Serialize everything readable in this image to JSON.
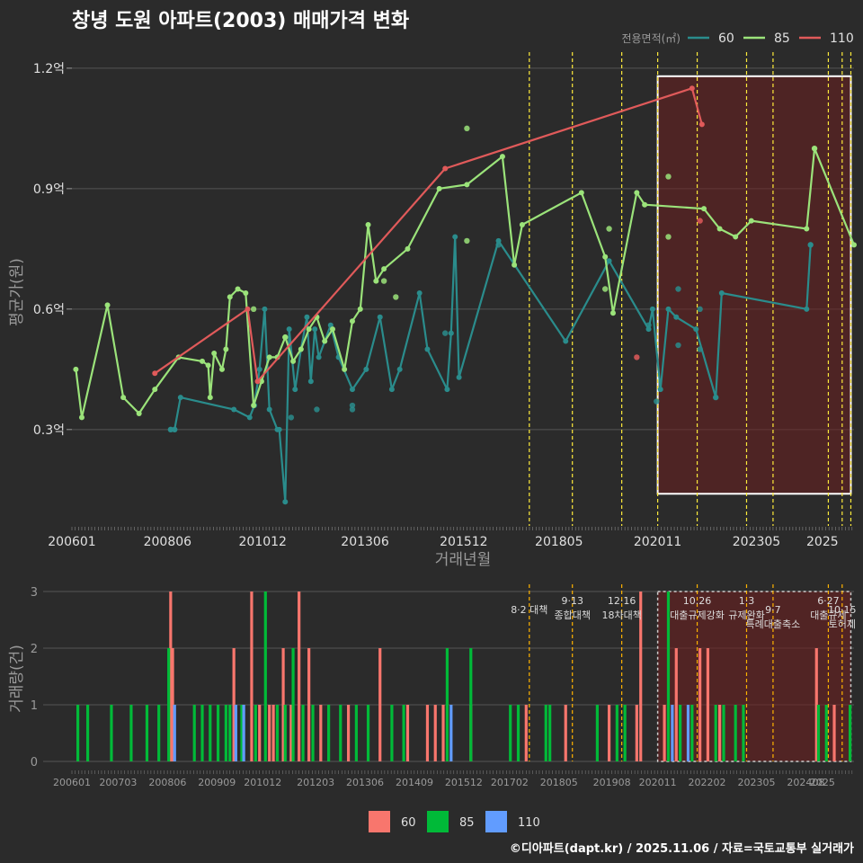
{
  "colors": {
    "bg": "#2b2b2b",
    "grid": "#555555",
    "text": "#e0e0e0",
    "muted": "#9a9a9a",
    "s60": "#2a8c8c",
    "s85": "#9be37a",
    "s110": "#e05a5a",
    "bar60": "#f8766d",
    "bar85": "#00ba38",
    "bar110": "#619cff",
    "policy": "#ffeb3b",
    "policy_bottom": "#ffb300",
    "highlight": "#6b1f1f"
  },
  "chart_data": [
    {
      "type": "line",
      "title": "창녕 도원 아파트(2003) 매매가격 변화",
      "xlabel": "거래년월",
      "ylabel": "평균가(원)",
      "legend_title": "전용면적(㎡)",
      "ylim": [
        0.06,
        1.24
      ],
      "xlim": [
        2006.0,
        2025.8
      ],
      "y_ticks": [
        {
          "v": 0.3,
          "label": "0.3억"
        },
        {
          "v": 0.6,
          "label": "0.6억"
        },
        {
          "v": 0.9,
          "label": "0.9억"
        },
        {
          "v": 1.2,
          "label": "1.2억"
        }
      ],
      "x_ticks": [
        {
          "v": 2006.0,
          "label": "200601"
        },
        {
          "v": 2008.42,
          "label": "200806"
        },
        {
          "v": 2010.83,
          "label": "201012"
        },
        {
          "v": 2013.42,
          "label": "201306"
        },
        {
          "v": 2015.92,
          "label": "201512"
        },
        {
          "v": 2018.33,
          "label": "201805"
        },
        {
          "v": 2020.83,
          "label": "202011"
        },
        {
          "v": 2023.33,
          "label": "202305"
        },
        {
          "v": 2025.0,
          "label": "2025"
        }
      ],
      "policy_lines": [
        2017.58,
        2018.67,
        2019.92,
        2020.83,
        2021.83,
        2023.08,
        2023.75,
        2025.15,
        2025.5,
        2025.72
      ],
      "highlight_range": [
        2020.83,
        2025.72
      ],
      "series": [
        {
          "name": "60",
          "line": [
            [
              2008.5,
              0.3
            ],
            [
              2008.6,
              0.3
            ],
            [
              2008.75,
              0.38
            ],
            [
              2010.1,
              0.35
            ],
            [
              2010.5,
              0.33
            ],
            [
              2010.62,
              0.36
            ],
            [
              2010.75,
              0.45
            ],
            [
              2010.88,
              0.6
            ],
            [
              2011.0,
              0.35
            ],
            [
              2011.2,
              0.3
            ],
            [
              2011.25,
              0.3
            ],
            [
              2011.4,
              0.12
            ],
            [
              2011.5,
              0.55
            ],
            [
              2011.65,
              0.4
            ],
            [
              2011.8,
              0.5
            ],
            [
              2011.95,
              0.58
            ],
            [
              2012.05,
              0.42
            ],
            [
              2012.15,
              0.55
            ],
            [
              2012.25,
              0.48
            ],
            [
              2012.4,
              0.52
            ],
            [
              2012.55,
              0.56
            ],
            [
              2012.75,
              0.48
            ],
            [
              2013.1,
              0.4
            ],
            [
              2013.45,
              0.45
            ],
            [
              2013.8,
              0.58
            ],
            [
              2014.1,
              0.4
            ],
            [
              2014.3,
              0.45
            ],
            [
              2014.8,
              0.64
            ],
            [
              2015.0,
              0.5
            ],
            [
              2015.5,
              0.4
            ],
            [
              2015.6,
              0.54
            ],
            [
              2015.7,
              0.78
            ],
            [
              2015.8,
              0.43
            ],
            [
              2016.8,
              0.77
            ],
            [
              2018.5,
              0.52
            ],
            [
              2019.6,
              0.72
            ],
            [
              2020.6,
              0.55
            ],
            [
              2020.7,
              0.6
            ],
            [
              2020.9,
              0.4
            ],
            [
              2021.1,
              0.6
            ],
            [
              2021.3,
              0.58
            ],
            [
              2021.8,
              0.55
            ],
            [
              2022.3,
              0.38
            ],
            [
              2022.45,
              0.64
            ],
            [
              2024.6,
              0.6
            ],
            [
              2024.7,
              0.76
            ]
          ],
          "points": [
            [
              2008.5,
              0.3
            ],
            [
              2008.6,
              0.3
            ],
            [
              2011.55,
              0.33
            ],
            [
              2012.2,
              0.35
            ],
            [
              2013.1,
              0.35
            ],
            [
              2013.1,
              0.36
            ],
            [
              2015.45,
              0.54
            ],
            [
              2016.8,
              0.76
            ],
            [
              2020.6,
              0.56
            ],
            [
              2020.8,
              0.37
            ],
            [
              2021.35,
              0.65
            ],
            [
              2021.35,
              0.51
            ],
            [
              2021.9,
              0.6
            ],
            [
              2021.9,
              0.5
            ],
            [
              2022.3,
              0.38
            ],
            [
              2024.7,
              0.76
            ]
          ]
        },
        {
          "name": "85",
          "line": [
            [
              2006.1,
              0.45
            ],
            [
              2006.25,
              0.33
            ],
            [
              2006.9,
              0.61
            ],
            [
              2007.3,
              0.38
            ],
            [
              2007.7,
              0.34
            ],
            [
              2008.1,
              0.4
            ],
            [
              2008.7,
              0.48
            ],
            [
              2009.3,
              0.47
            ],
            [
              2009.45,
              0.46
            ],
            [
              2009.5,
              0.38
            ],
            [
              2009.6,
              0.49
            ],
            [
              2009.8,
              0.45
            ],
            [
              2009.9,
              0.5
            ],
            [
              2010.0,
              0.63
            ],
            [
              2010.2,
              0.65
            ],
            [
              2010.4,
              0.64
            ],
            [
              2010.6,
              0.36
            ],
            [
              2010.8,
              0.42
            ],
            [
              2011.0,
              0.48
            ],
            [
              2011.2,
              0.48
            ],
            [
              2011.4,
              0.53
            ],
            [
              2011.6,
              0.47
            ],
            [
              2011.8,
              0.5
            ],
            [
              2012.0,
              0.55
            ],
            [
              2012.2,
              0.58
            ],
            [
              2012.4,
              0.52
            ],
            [
              2012.6,
              0.55
            ],
            [
              2012.9,
              0.45
            ],
            [
              2013.1,
              0.57
            ],
            [
              2013.3,
              0.6
            ],
            [
              2013.5,
              0.81
            ],
            [
              2013.7,
              0.67
            ],
            [
              2013.9,
              0.7
            ],
            [
              2014.5,
              0.75
            ],
            [
              2015.3,
              0.9
            ],
            [
              2016.0,
              0.91
            ],
            [
              2016.9,
              0.98
            ],
            [
              2017.2,
              0.71
            ],
            [
              2017.4,
              0.81
            ],
            [
              2018.9,
              0.89
            ],
            [
              2019.5,
              0.73
            ],
            [
              2019.7,
              0.59
            ],
            [
              2020.3,
              0.89
            ],
            [
              2020.5,
              0.86
            ],
            [
              2022.0,
              0.85
            ],
            [
              2022.4,
              0.8
            ],
            [
              2022.8,
              0.78
            ],
            [
              2023.2,
              0.82
            ],
            [
              2024.6,
              0.8
            ],
            [
              2024.8,
              1.0
            ],
            [
              2025.8,
              0.76
            ]
          ],
          "points": [
            [
              2010.6,
              0.6
            ],
            [
              2011.4,
              0.53
            ],
            [
              2013.9,
              0.67
            ],
            [
              2014.2,
              0.63
            ],
            [
              2016.0,
              1.05
            ],
            [
              2016.0,
              0.77
            ],
            [
              2019.5,
              0.65
            ],
            [
              2019.6,
              0.8
            ],
            [
              2021.1,
              0.93
            ],
            [
              2021.1,
              0.78
            ],
            [
              2024.8,
              1.0
            ]
          ]
        },
        {
          "name": "110",
          "line": [
            [
              2008.1,
              0.44
            ],
            [
              2010.45,
              0.6
            ],
            [
              2010.7,
              0.42
            ],
            [
              2015.45,
              0.95
            ],
            [
              2021.7,
              1.15
            ],
            [
              2021.95,
              1.06
            ]
          ],
          "points": [
            [
              2020.3,
              0.48
            ],
            [
              2021.9,
              0.82
            ]
          ]
        }
      ],
      "annotation_box": {
        "x": [
          2020.83,
          2025.72
        ],
        "y": [
          0.14,
          1.18
        ]
      }
    },
    {
      "type": "bar",
      "ylabel": "거래량(건)",
      "ylim": [
        0,
        3
      ],
      "y_ticks": [
        0,
        1,
        2,
        3
      ],
      "x_ticks": [
        {
          "v": 2006.0,
          "label": "200601"
        },
        {
          "v": 2007.17,
          "label": "200703"
        },
        {
          "v": 2008.42,
          "label": "200806"
        },
        {
          "v": 2009.67,
          "label": "200909"
        },
        {
          "v": 2010.83,
          "label": "201012"
        },
        {
          "v": 2012.17,
          "label": "201203"
        },
        {
          "v": 2013.42,
          "label": "201306"
        },
        {
          "v": 2014.67,
          "label": "201409"
        },
        {
          "v": 2015.92,
          "label": "201512"
        },
        {
          "v": 2017.08,
          "label": "201702"
        },
        {
          "v": 2018.33,
          "label": "201805"
        },
        {
          "v": 2019.67,
          "label": "201908"
        },
        {
          "v": 2020.83,
          "label": "202011"
        },
        {
          "v": 2022.08,
          "label": "202202"
        },
        {
          "v": 2023.33,
          "label": "202305"
        },
        {
          "v": 2024.58,
          "label": "202408"
        },
        {
          "v": 2025.0,
          "label": "2025"
        }
      ],
      "legend": [
        "60",
        "85",
        "110"
      ],
      "policies": [
        {
          "x": 2017.58,
          "label": "8·2 대책",
          "label2": "",
          "row": 2
        },
        {
          "x": 2018.67,
          "label": "9·13",
          "label2": "종합대책",
          "row": 1
        },
        {
          "x": 2019.92,
          "label": "12·16",
          "label2": "18차대책",
          "row": 1
        },
        {
          "x": 2021.83,
          "label": "10.26",
          "label2": "대출규제강화",
          "row": 1
        },
        {
          "x": 2023.08,
          "label": "1·3",
          "label2": "규제완화",
          "row": 1
        },
        {
          "x": 2023.75,
          "label": "9·7",
          "label2": "특례대출축소",
          "row": 2
        },
        {
          "x": 2025.15,
          "label": "6·27",
          "label2": "대출규제",
          "row": 1
        },
        {
          "x": 2025.5,
          "label": "10·15",
          "label2": "토허제",
          "row": 2
        }
      ],
      "bars": {
        "60": [
          [
            2008.5,
            3
          ],
          [
            2008.55,
            2
          ],
          [
            2010.1,
            2
          ],
          [
            2010.55,
            3
          ],
          [
            2010.75,
            1
          ],
          [
            2011.0,
            1
          ],
          [
            2011.1,
            1
          ],
          [
            2011.35,
            2
          ],
          [
            2011.55,
            1
          ],
          [
            2011.75,
            3
          ],
          [
            2012.0,
            2
          ],
          [
            2012.3,
            1
          ],
          [
            2013.0,
            1
          ],
          [
            2013.8,
            2
          ],
          [
            2014.5,
            1
          ],
          [
            2015.0,
            1
          ],
          [
            2015.2,
            1
          ],
          [
            2015.4,
            1
          ],
          [
            2016.1,
            1
          ],
          [
            2017.5,
            1
          ],
          [
            2018.5,
            1
          ],
          [
            2019.6,
            1
          ],
          [
            2020.3,
            1
          ],
          [
            2020.4,
            3
          ],
          [
            2021.0,
            1
          ],
          [
            2021.3,
            2
          ],
          [
            2021.9,
            2
          ],
          [
            2022.1,
            2
          ],
          [
            2022.4,
            1
          ],
          [
            2024.85,
            2
          ],
          [
            2025.3,
            1
          ]
        ],
        "85": [
          [
            2006.15,
            1
          ],
          [
            2006.4,
            1
          ],
          [
            2007.0,
            1
          ],
          [
            2007.5,
            1
          ],
          [
            2007.9,
            1
          ],
          [
            2008.2,
            1
          ],
          [
            2008.45,
            2
          ],
          [
            2009.1,
            1
          ],
          [
            2009.3,
            1
          ],
          [
            2009.5,
            1
          ],
          [
            2009.7,
            1
          ],
          [
            2009.9,
            1
          ],
          [
            2010.0,
            1
          ],
          [
            2010.3,
            1
          ],
          [
            2010.65,
            1
          ],
          [
            2010.9,
            3
          ],
          [
            2011.2,
            1
          ],
          [
            2011.4,
            1
          ],
          [
            2011.6,
            2
          ],
          [
            2011.85,
            1
          ],
          [
            2012.1,
            1
          ],
          [
            2012.5,
            1
          ],
          [
            2012.8,
            1
          ],
          [
            2013.2,
            1
          ],
          [
            2013.5,
            1
          ],
          [
            2014.1,
            1
          ],
          [
            2014.4,
            1
          ],
          [
            2015.5,
            2
          ],
          [
            2016.1,
            2
          ],
          [
            2017.1,
            1
          ],
          [
            2017.3,
            1
          ],
          [
            2018.0,
            1
          ],
          [
            2018.1,
            1
          ],
          [
            2019.3,
            1
          ],
          [
            2019.8,
            1
          ],
          [
            2020.0,
            1
          ],
          [
            2021.1,
            3
          ],
          [
            2021.4,
            1
          ],
          [
            2021.7,
            1
          ],
          [
            2022.3,
            1
          ],
          [
            2022.5,
            1
          ],
          [
            2022.8,
            1
          ],
          [
            2023.0,
            1
          ],
          [
            2024.9,
            1
          ],
          [
            2025.1,
            1
          ],
          [
            2025.7,
            1
          ]
        ],
        "110": [
          [
            2008.6,
            1
          ],
          [
            2010.15,
            1
          ],
          [
            2010.35,
            1
          ],
          [
            2015.6,
            1
          ],
          [
            2021.2,
            1
          ],
          [
            2021.6,
            1
          ]
        ]
      }
    }
  ],
  "footer": "©디아파트(dapt.kr) / 2025.11.06 / 자료=국토교통부 실거래가"
}
